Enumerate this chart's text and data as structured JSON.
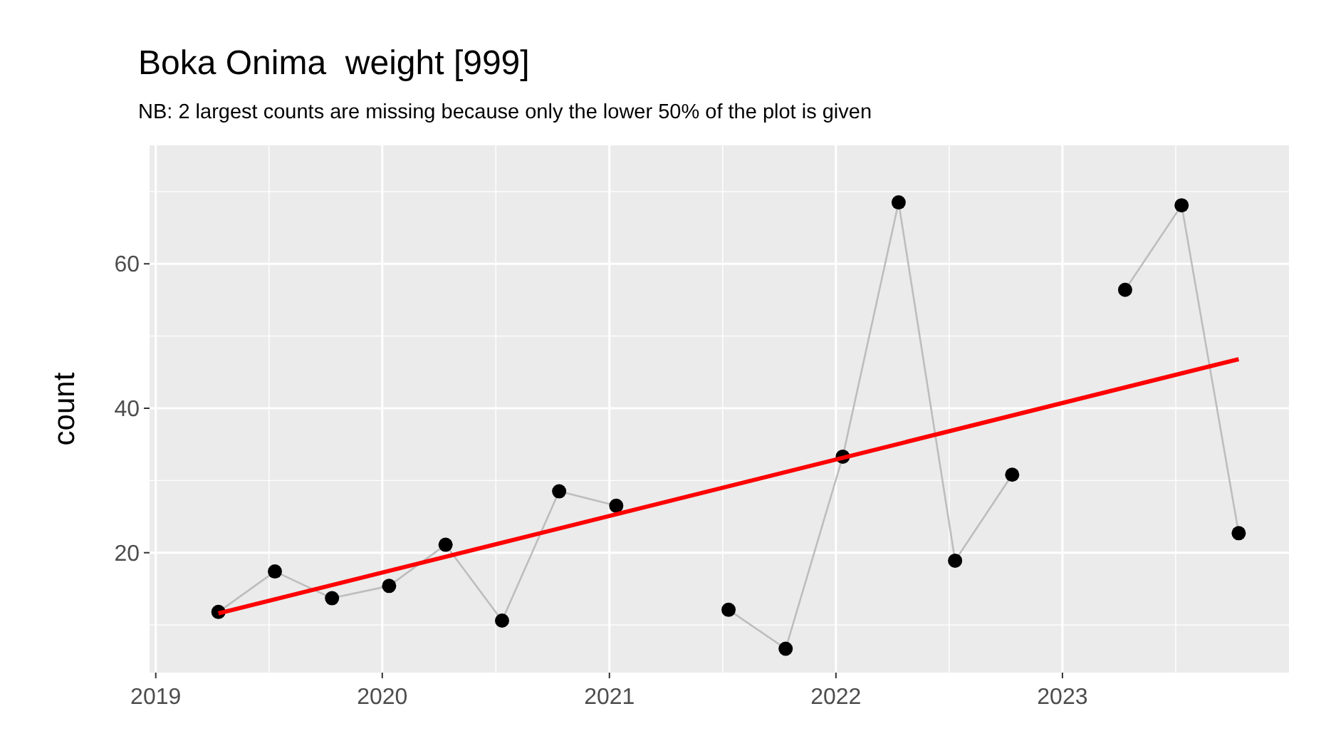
{
  "chart_data": {
    "type": "line",
    "title": "Boka Onima  weight [999]",
    "subtitle": "NB: 2 largest counts are missing because only the lower 50% of the plot is given",
    "ylabel": "count",
    "x": [
      "2019-04-12",
      "2019-07-12",
      "2019-10-12",
      "2020-01-12",
      "2020-04-12",
      "2020-07-12",
      "2020-10-12",
      "2021-01-12",
      "2021-04-12",
      "2021-07-12",
      "2021-10-12",
      "2022-01-12",
      "2022-04-12",
      "2022-07-12",
      "2022-10-12",
      "2023-01-12",
      "2023-04-12",
      "2023-07-12",
      "2023-10-12"
    ],
    "series": [
      {
        "type": "line",
        "color": "#bdbdbd",
        "marker": "none",
        "values": [
          11.8,
          17.4,
          13.7,
          15.4,
          21.1,
          10.6,
          28.5,
          26.5,
          null,
          12.1,
          6.7,
          33.3,
          68.5,
          18.9,
          30.8,
          null,
          56.4,
          68.1,
          22.7
        ]
      },
      {
        "type": "scatter",
        "color": "#000000",
        "marker": "circle",
        "values": [
          11.8,
          17.4,
          13.7,
          15.4,
          21.1,
          10.6,
          28.5,
          26.5,
          null,
          12.1,
          6.7,
          33.3,
          68.5,
          18.9,
          30.8,
          null,
          56.4,
          68.1,
          22.7
        ]
      },
      {
        "type": "line",
        "color": "#ff0000",
        "marker": "none",
        "x": [
          "2019-04-12",
          "2023-10-12"
        ],
        "values": [
          11.6,
          46.8
        ]
      }
    ],
    "xlim": [
      "2018-12-22",
      "2024-01-01"
    ],
    "xticks": [
      "2019",
      "2020",
      "2021",
      "2022",
      "2023"
    ],
    "ylim": [
      3.4,
      76.4
    ],
    "yticks": [
      20,
      40,
      60
    ],
    "grid": true
  }
}
